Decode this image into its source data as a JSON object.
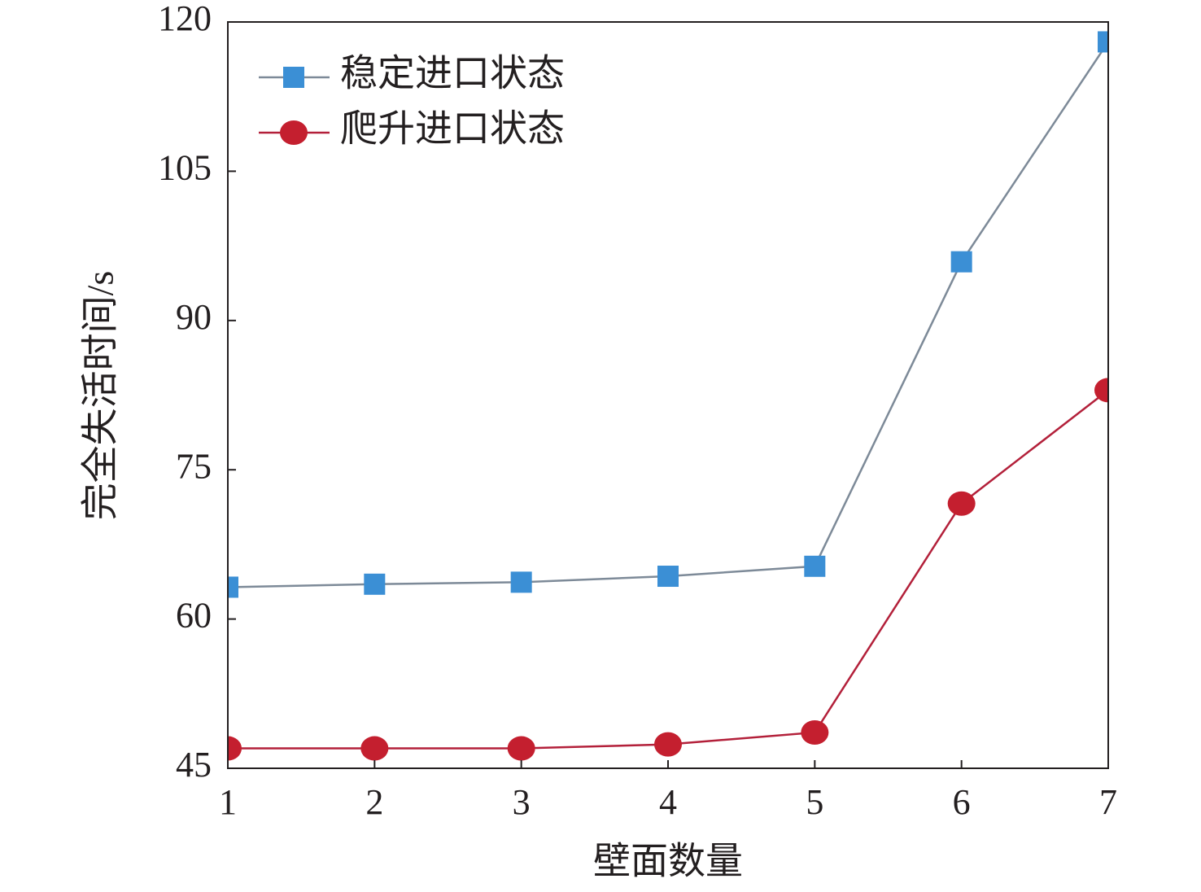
{
  "chart_data": {
    "type": "line",
    "x_label": "壁面数量",
    "y_label": "完全失活时间/s",
    "x": [
      1,
      2,
      3,
      4,
      5,
      6,
      7
    ],
    "series": [
      {
        "name": "稳定进口状态",
        "color": "#3b8fd5",
        "line_color": "#7d8a98",
        "marker": "square",
        "values": [
          63.2,
          63.5,
          63.7,
          64.3,
          65.3,
          95.9,
          118.0
        ]
      },
      {
        "name": "爬升进口状态",
        "color": "#c41f2f",
        "line_color": "#b3203a",
        "marker": "circle",
        "values": [
          47.0,
          47.0,
          47.0,
          47.4,
          48.6,
          71.6,
          83.0
        ]
      }
    ],
    "xlim": [
      1,
      7
    ],
    "xticks": [
      1,
      2,
      3,
      4,
      5,
      6,
      7
    ],
    "ylim": [
      45,
      120
    ],
    "yticks": [
      45,
      60,
      75,
      90,
      105,
      120
    ],
    "legend": "upper left"
  }
}
